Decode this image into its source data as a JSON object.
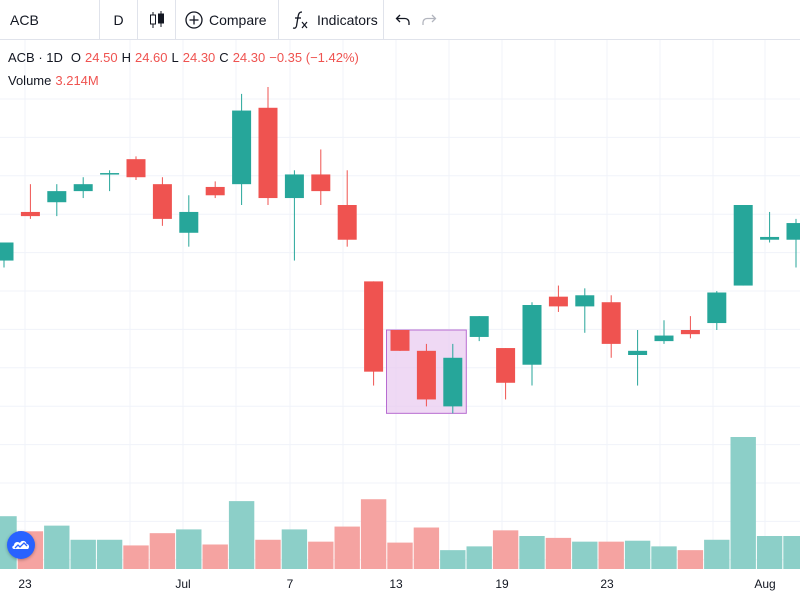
{
  "toolbar": {
    "symbol": "ACB",
    "interval": "D",
    "compare_label": "Compare",
    "indicators_label": "Indicators"
  },
  "legend": {
    "title": "ACB · 1D",
    "open_label": "O",
    "open": "24.50",
    "high_label": "H",
    "high": "24.60",
    "low_label": "L",
    "low": "24.30",
    "close_label": "C",
    "close": "24.30",
    "change": "−0.35 (−1.42%)",
    "volume_label": "Volume",
    "volume": "3.214M"
  },
  "colors": {
    "up": "#26a69a",
    "down": "#ef5350",
    "volume_up": "#8ccfc8",
    "volume_down": "#f5a3a1",
    "highlight_fill": "#e8c9f0",
    "highlight_stroke": "#b76cd1"
  },
  "chart_data": {
    "type": "candlestick",
    "grid": true,
    "x_tick_labels": [
      "23",
      "Jul",
      "7",
      "13",
      "19",
      "23",
      "Aug"
    ],
    "ylim": [
      23.0,
      26.6
    ],
    "candles": [
      {
        "o": 25.3,
        "h": 25.4,
        "l": 25.25,
        "c": 25.43
      },
      {
        "o": 25.65,
        "h": 25.85,
        "l": 25.6,
        "c": 25.62
      },
      {
        "o": 25.72,
        "h": 25.85,
        "l": 25.62,
        "c": 25.8
      },
      {
        "o": 25.8,
        "h": 25.9,
        "l": 25.75,
        "c": 25.85
      },
      {
        "o": 25.93,
        "h": 25.95,
        "l": 25.8,
        "c": 25.93
      },
      {
        "o": 26.03,
        "h": 26.05,
        "l": 25.88,
        "c": 25.9
      },
      {
        "o": 25.85,
        "h": 25.9,
        "l": 25.55,
        "c": 25.6
      },
      {
        "o": 25.5,
        "h": 25.77,
        "l": 25.4,
        "c": 25.65
      },
      {
        "o": 25.83,
        "h": 25.87,
        "l": 25.75,
        "c": 25.77
      },
      {
        "o": 25.85,
        "h": 26.5,
        "l": 25.7,
        "c": 26.38
      },
      {
        "o": 26.4,
        "h": 26.55,
        "l": 25.7,
        "c": 25.75
      },
      {
        "o": 25.75,
        "h": 25.95,
        "l": 25.3,
        "c": 25.92
      },
      {
        "o": 25.92,
        "h": 26.1,
        "l": 25.7,
        "c": 25.8
      },
      {
        "o": 25.7,
        "h": 25.95,
        "l": 25.4,
        "c": 25.45
      },
      {
        "o": 25.15,
        "h": 25.15,
        "l": 24.4,
        "c": 24.5
      },
      {
        "o": 24.8,
        "h": 24.8,
        "l": 24.65,
        "c": 24.65
      },
      {
        "o": 24.65,
        "h": 24.7,
        "l": 24.25,
        "c": 24.3
      },
      {
        "o": 24.25,
        "h": 24.7,
        "l": 24.2,
        "c": 24.6
      },
      {
        "o": 24.75,
        "h": 24.9,
        "l": 24.72,
        "c": 24.9
      },
      {
        "o": 24.67,
        "h": 24.67,
        "l": 24.3,
        "c": 24.42
      },
      {
        "o": 24.55,
        "h": 25.0,
        "l": 24.4,
        "c": 24.98
      },
      {
        "o": 25.04,
        "h": 25.12,
        "l": 24.93,
        "c": 24.97
      },
      {
        "o": 24.97,
        "h": 25.1,
        "l": 24.78,
        "c": 25.05
      },
      {
        "o": 25.0,
        "h": 25.05,
        "l": 24.6,
        "c": 24.7
      },
      {
        "o": 24.62,
        "h": 24.8,
        "l": 24.4,
        "c": 24.65
      },
      {
        "o": 24.72,
        "h": 24.87,
        "l": 24.7,
        "c": 24.76
      },
      {
        "o": 24.8,
        "h": 24.9,
        "l": 24.74,
        "c": 24.77
      },
      {
        "o": 24.85,
        "h": 25.08,
        "l": 24.8,
        "c": 25.07
      },
      {
        "o": 25.12,
        "h": 25.7,
        "l": 25.12,
        "c": 25.7
      },
      {
        "o": 25.45,
        "h": 25.65,
        "l": 25.43,
        "c": 25.47
      },
      {
        "o": 25.45,
        "h": 25.6,
        "l": 25.25,
        "c": 25.57
      }
    ],
    "volume": [
      560,
      400,
      460,
      310,
      310,
      250,
      380,
      420,
      260,
      720,
      310,
      420,
      290,
      450,
      740,
      280,
      440,
      200,
      240,
      410,
      350,
      330,
      290,
      290,
      300,
      240,
      200,
      310,
      1400,
      350,
      350
    ],
    "highlight": {
      "from_index": 15,
      "to_index": 17,
      "low": 24.2,
      "high": 24.8
    }
  }
}
